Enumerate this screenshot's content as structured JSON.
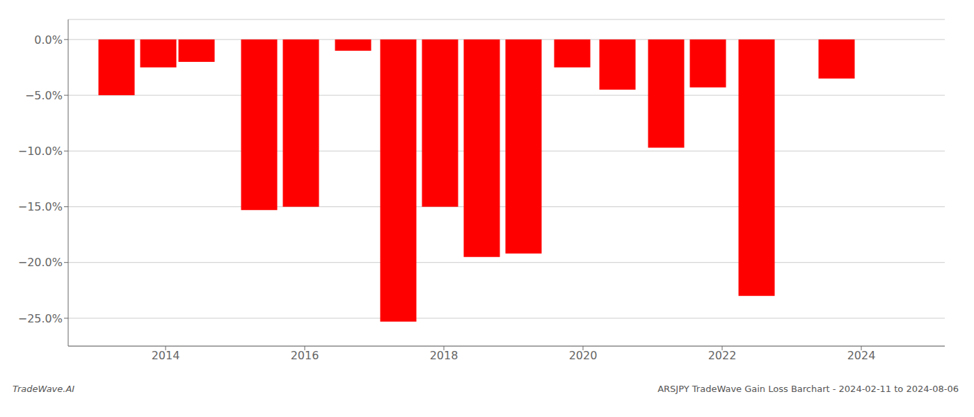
{
  "chart_data": {
    "type": "bar",
    "x": [
      2013.3,
      2013.9,
      2014.45,
      2015.35,
      2015.95,
      2016.7,
      2017.35,
      2017.95,
      2018.55,
      2019.15,
      2019.85,
      2020.5,
      2021.2,
      2021.8,
      2022.5,
      2023.65
    ],
    "values": [
      -5.0,
      -2.5,
      -2.0,
      -15.3,
      -15.0,
      -1.0,
      -25.3,
      -15.0,
      -19.5,
      -19.2,
      -2.5,
      -4.5,
      -9.7,
      -4.3,
      -23.0,
      -3.5
    ],
    "color": "#ff0000",
    "xlim": [
      2012.6,
      2025.2
    ],
    "xticks": [
      2014,
      2016,
      2018,
      2020,
      2022,
      2024
    ],
    "ylim": [
      -27.5,
      1.8
    ],
    "yticks": [
      {
        "value": 0.0,
        "label": "0.0%"
      },
      {
        "value": -5.0,
        "label": "−5.0%"
      },
      {
        "value": -10.0,
        "label": "−10.0%"
      },
      {
        "value": -15.0,
        "label": "−15.0%"
      },
      {
        "value": -20.0,
        "label": "−20.0%"
      },
      {
        "value": -25.0,
        "label": "−25.0%"
      }
    ],
    "grid": true,
    "annotations": [
      "TradeWave.AI",
      "ARSJPY TradeWave Gain Loss Barchart - 2024-02-11 to 2024-08-06"
    ]
  }
}
